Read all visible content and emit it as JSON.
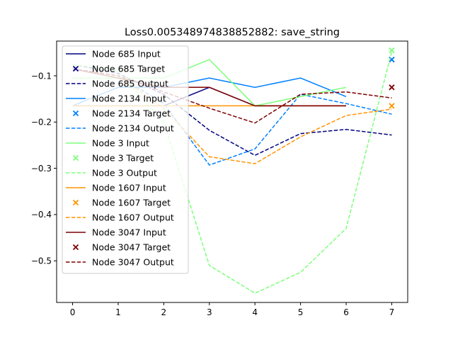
{
  "chart_data": {
    "type": "line",
    "title": "Loss0.005348974838852882: save_string",
    "xlabel": "",
    "ylabel": "",
    "xlim": [
      -0.35,
      7.35
    ],
    "ylim": [
      -0.59,
      -0.025
    ],
    "xticks": [
      0,
      1,
      2,
      3,
      4,
      5,
      6,
      7
    ],
    "yticks": [
      -0.5,
      -0.4,
      -0.3,
      -0.2,
      -0.1
    ],
    "ytick_labels": [
      "−0.5",
      "−0.4",
      "−0.3",
      "−0.2",
      "−0.1"
    ],
    "grid": false,
    "legend_position": "upper-left",
    "series": [
      {
        "name": "Node 685",
        "color": "#00007f",
        "input_x": [
          0,
          1,
          2,
          3,
          4,
          5,
          6
        ],
        "input": [
          -0.165,
          -0.165,
          -0.165,
          -0.125,
          -0.165,
          -0.165,
          -0.165
        ],
        "target_x": 7,
        "target": -0.065,
        "output_x": [
          0,
          1,
          2,
          3,
          4,
          5,
          6,
          7
        ],
        "output": [
          -0.075,
          -0.095,
          -0.14,
          -0.218,
          -0.272,
          -0.225,
          -0.216,
          -0.228
        ]
      },
      {
        "name": "Node 2134",
        "color": "#0080ff",
        "input_x": [
          0,
          1,
          2,
          3,
          4,
          5,
          6
        ],
        "input": [
          -0.165,
          -0.125,
          -0.125,
          -0.105,
          -0.125,
          -0.105,
          -0.145
        ],
        "target_x": 7,
        "target": -0.065,
        "output_x": [
          0,
          1,
          2,
          3,
          4,
          5,
          6,
          7
        ],
        "output": [
          -0.085,
          -0.1,
          -0.16,
          -0.293,
          -0.258,
          -0.14,
          -0.16,
          -0.183
        ]
      },
      {
        "name": "Node 3",
        "color": "#7dff7a",
        "input_x": [
          0,
          1,
          2,
          3,
          4,
          5,
          6
        ],
        "input": [
          -0.105,
          -0.105,
          -0.105,
          -0.065,
          -0.165,
          -0.145,
          -0.125
        ],
        "target_x": 7,
        "target": -0.045,
        "output_x": [
          0,
          1,
          2,
          3,
          4,
          5,
          6,
          7
        ],
        "output": [
          -0.075,
          -0.09,
          -0.2,
          -0.51,
          -0.57,
          -0.525,
          -0.43,
          -0.048
        ]
      },
      {
        "name": "Node 1607",
        "color": "#ff9400",
        "input_x": [
          0,
          1,
          2,
          3,
          4,
          5,
          6
        ],
        "input": [
          -0.165,
          -0.165,
          -0.165,
          -0.165,
          -0.165,
          -0.165,
          -0.165
        ],
        "target_x": 7,
        "target": -0.165,
        "output_x": [
          0,
          1,
          2,
          3,
          4,
          5,
          6,
          7
        ],
        "output": [
          -0.085,
          -0.1,
          -0.17,
          -0.275,
          -0.29,
          -0.232,
          -0.186,
          -0.172
        ]
      },
      {
        "name": "Node 3047",
        "color": "#7f0000",
        "input_x": [
          0,
          1,
          2,
          3,
          4,
          5,
          6
        ],
        "input": [
          -0.085,
          -0.105,
          -0.125,
          -0.125,
          -0.165,
          -0.165,
          -0.165
        ],
        "target_x": 7,
        "target": -0.125,
        "output_x": [
          0,
          1,
          2,
          3,
          4,
          5,
          6,
          7
        ],
        "output": [
          -0.085,
          -0.1,
          -0.135,
          -0.17,
          -0.202,
          -0.14,
          -0.135,
          -0.148
        ]
      }
    ],
    "legend": [
      "Node 685 Input",
      "Node 685 Target",
      "Node 685 Output",
      "Node 2134 Input",
      "Node 2134 Target",
      "Node 2134 Output",
      "Node 3 Input",
      "Node 3 Target",
      "Node 3 Output",
      "Node 1607 Input",
      "Node 1607 Target",
      "Node 1607 Output",
      "Node 3047 Input",
      "Node 3047 Target",
      "Node 3047 Output"
    ]
  }
}
